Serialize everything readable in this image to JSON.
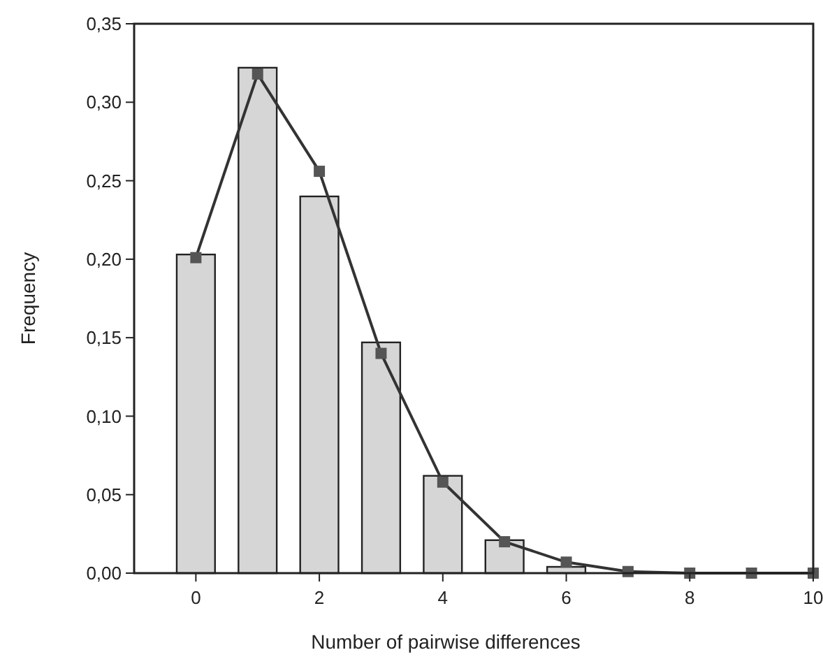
{
  "chart_data": {
    "type": "bar",
    "xlabel": "Number of pairwise differences",
    "ylabel": "Frequency",
    "xlim": [
      -1,
      10
    ],
    "xticks": [
      0,
      2,
      4,
      6,
      8,
      10
    ],
    "ylim": [
      0,
      0.35
    ],
    "yticks": [
      {
        "value": 0,
        "label": "0,00"
      },
      {
        "value": 0.05,
        "label": "0,05"
      },
      {
        "value": 0.1,
        "label": "0,10"
      },
      {
        "value": 0.15,
        "label": "0,15"
      },
      {
        "value": 0.2,
        "label": "0,20"
      },
      {
        "value": 0.25,
        "label": "0,25"
      },
      {
        "value": 0.3,
        "label": "0,30"
      },
      {
        "value": 0.35,
        "label": "0,35"
      }
    ],
    "grid": false,
    "series": [
      {
        "color": "#d6d6d6",
        "x": [
          0,
          1,
          2,
          3,
          4,
          5,
          6
        ],
        "values": [
          0.203,
          0.322,
          0.24,
          0.147,
          0.062,
          0.021,
          0.004
        ]
      },
      {
        "type": "line",
        "color": "#333333",
        "marker": "square",
        "line_style": "solid",
        "x": [
          0,
          1,
          2,
          3,
          4,
          5,
          6,
          7,
          8,
          9,
          10
        ],
        "values": [
          0.201,
          0.318,
          0.256,
          0.14,
          0.058,
          0.02,
          0.007,
          0.001,
          0,
          0,
          0
        ]
      }
    ]
  }
}
